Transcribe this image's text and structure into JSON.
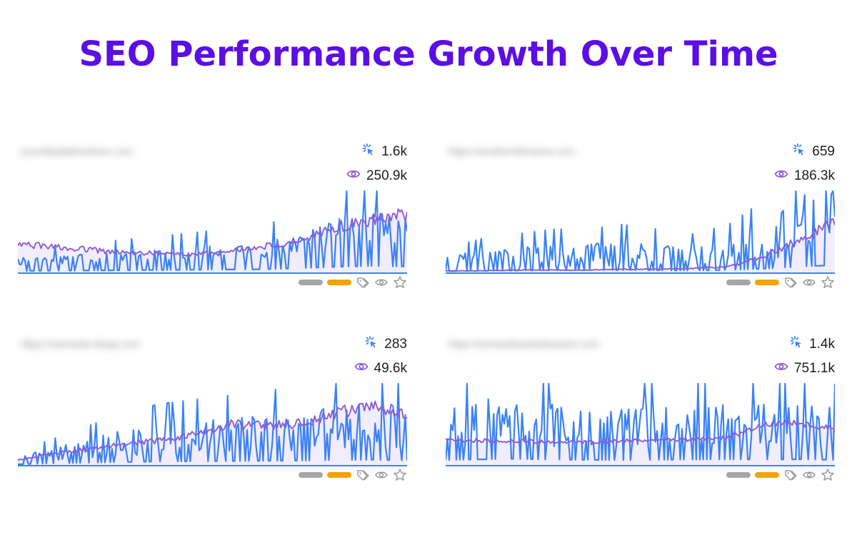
{
  "title": "SEO Performance Growth Over Time",
  "colors": {
    "title": "#5b0ee5",
    "clicks_line": "#3b82f6",
    "impressions_line": "#8b5cd6",
    "impressions_fill": "#efe8fb",
    "pill_grey": "#a6a6a6",
    "pill_orange": "#f2a400"
  },
  "icons": {
    "clicks": "cursor-click-icon",
    "impressions": "eye-icon",
    "toolbar": [
      "tag-icon",
      "eye-icon",
      "star-icon"
    ]
  },
  "panels": [
    {
      "site": "yoursiteaddresshere.com",
      "clicks": "1.6k",
      "impressions": "250.9k"
    },
    {
      "site": "https://anothersitename.com",
      "clicks": "659",
      "impressions": "186.3k"
    },
    {
      "site": "https://somesite-blogs.com",
      "clicks": "283",
      "impressions": "49.6k"
    },
    {
      "site": "https://somesitewebsitename.com",
      "clicks": "1.4k",
      "impressions": "751.1k"
    }
  ],
  "chart_data": [
    {
      "type": "line",
      "title": "",
      "grid": false,
      "legend": "none",
      "y_range": [
        0,
        100
      ],
      "series": [
        {
          "role": "clicks",
          "trend": [
            12,
            14,
            16,
            18,
            20,
            22,
            24,
            26,
            34,
            46,
            52,
            48
          ],
          "spike": 0.35
        },
        {
          "role": "impressions",
          "trend": [
            34,
            32,
            28,
            24,
            24,
            22,
            26,
            32,
            40,
            56,
            64,
            72
          ],
          "spike": 0.12
        }
      ]
    },
    {
      "type": "line",
      "title": "",
      "grid": false,
      "legend": "none",
      "y_range": [
        0,
        100
      ],
      "series": [
        {
          "role": "clicks",
          "trend": [
            10,
            14,
            16,
            18,
            18,
            20,
            18,
            16,
            20,
            30,
            48,
            60
          ],
          "spike": 0.75
        },
        {
          "role": "impressions",
          "trend": [
            2,
            2,
            3,
            3,
            3,
            4,
            4,
            5,
            7,
            20,
            40,
            60
          ],
          "spike": 0.15
        }
      ]
    },
    {
      "type": "line",
      "title": "",
      "grid": false,
      "legend": "none",
      "y_range": [
        0,
        100
      ],
      "series": [
        {
          "role": "clicks",
          "trend": [
            6,
            12,
            18,
            24,
            28,
            30,
            32,
            34,
            36,
            40,
            42,
            38
          ],
          "spike": 0.6
        },
        {
          "role": "impressions",
          "trend": [
            6,
            14,
            20,
            26,
            30,
            38,
            50,
            48,
            52,
            64,
            72,
            62
          ],
          "spike": 0.12
        }
      ]
    },
    {
      "type": "line",
      "title": "",
      "grid": false,
      "legend": "none",
      "y_range": [
        0,
        100
      ],
      "series": [
        {
          "role": "clicks",
          "trend": [
            40,
            46,
            50,
            44,
            42,
            40,
            42,
            44,
            46,
            44,
            46,
            42
          ],
          "spike": 0.55
        },
        {
          "role": "impressions",
          "trend": [
            30,
            30,
            30,
            28,
            28,
            30,
            30,
            32,
            34,
            50,
            52,
            44
          ],
          "spike": 0.08
        }
      ]
    }
  ]
}
